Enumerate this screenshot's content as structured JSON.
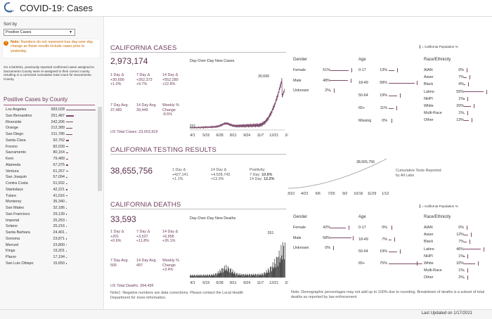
{
  "header": {
    "title": "COVID-19: Cases",
    "logo": "CA GOV"
  },
  "sidebar": {
    "sort_label": "Sort by",
    "sort_value": "Positive Cases",
    "note_bold": "Note:",
    "note_text": "Numbers do not represent true day-over-day change as these results include cases prior to yesterday.",
    "info": "On 1/15/2021, previously reported confirmed cases assigned to Sacramento County were re-assigned to their correct county resulting in a corrected cumulative total count for Sacramento County.",
    "county_title": "Positive Cases by County",
    "counties": [
      {
        "name": "Los Angeles",
        "value": "993,028",
        "v": 993028
      },
      {
        "name": "San Bernardino",
        "value": "251,487",
        "v": 251487
      },
      {
        "name": "Riverside",
        "value": "242,206",
        "v": 242206
      },
      {
        "name": "Orange",
        "value": "212,389",
        "v": 212389
      },
      {
        "name": "San Diego",
        "value": "211,785",
        "v": 211785
      },
      {
        "name": "Santa Clara",
        "value": "92,752",
        "v": 92752
      },
      {
        "name": "Fresno",
        "value": "82,039",
        "v": 82039
      },
      {
        "name": "Sacramento",
        "value": "80,154",
        "v": 80154
      },
      {
        "name": "Kern",
        "value": "79,489",
        "v": 79489
      },
      {
        "name": "Alameda",
        "value": "67,375",
        "v": 67375
      },
      {
        "name": "Ventura",
        "value": "61,257",
        "v": 61257
      },
      {
        "name": "San Joaquin",
        "value": "57,094",
        "v": 57094
      },
      {
        "name": "Contra Costa",
        "value": "51,932",
        "v": 51932
      },
      {
        "name": "Stanislaus",
        "value": "42,221",
        "v": 42221
      },
      {
        "name": "Tulare",
        "value": "41,016",
        "v": 41016
      },
      {
        "name": "Monterey",
        "value": "35,340",
        "v": 35340
      },
      {
        "name": "San Mateo",
        "value": "32,186",
        "v": 32186
      },
      {
        "name": "San Francisco",
        "value": "29,139",
        "v": 29139
      },
      {
        "name": "Imperial",
        "value": "25,253",
        "v": 25253
      },
      {
        "name": "Solano",
        "value": "25,216",
        "v": 25216
      },
      {
        "name": "Santa Barbara",
        "value": "24,401",
        "v": 24401
      },
      {
        "name": "Sonoma",
        "value": "23,871",
        "v": 23871
      },
      {
        "name": "Merced",
        "value": "23,800",
        "v": 23800
      },
      {
        "name": "Kings",
        "value": "19,201",
        "v": 19201
      },
      {
        "name": "Placer",
        "value": "17,194",
        "v": 17194
      },
      {
        "name": "San Luis Obispo",
        "value": "15,650",
        "v": 15650
      }
    ]
  },
  "legend": "= California Population %",
  "cases": {
    "title": "CALIFORNIA CASES",
    "total": "2,973,174",
    "d1_label": "1 Day Δ",
    "d1_val": "+30,699",
    "d1_pct": "+1.0%",
    "d7_label": "7 Day Δ",
    "d7_val": "+262,373",
    "d7_pct": "+9.7%",
    "d14_label": "14 Day Δ",
    "d14_val": "+552,280",
    "d14_pct": "+22.8%",
    "avg7_label": "7 Day Avg.",
    "avg7_val": "37,482",
    "avg14_label": "14 Day Avg.",
    "avg14_val": "39,449",
    "weekly_label": "Weekly % Change",
    "weekly_val": "-9.5%",
    "total_tests": "US Total Cases: 23,653,919",
    "chart_title": "Day-Over-Day New Cases",
    "peak_label": "30,699",
    "start_label": "331",
    "xticks": [
      "4/1",
      "5/15",
      "6/28",
      "8/11",
      "9/24",
      "11/7",
      "12/21",
      "2/3"
    ]
  },
  "testing": {
    "title": "CALIFORNIA TESTING RESULTS",
    "total": "38,655,756",
    "d1_label": "1 Day Δ",
    "d1_val": "+427,141",
    "d1_pct": "+1.1%",
    "d14_label": "14 Day Δ",
    "d14_val": "+4,528,743",
    "d14_pct": "+13.3%",
    "pos_label": "Positivity:",
    "pos7_label": "7 Day:",
    "pos7_val": "10.6%",
    "pos14_label": "14 Day:",
    "pos14_val": "12.2%",
    "chart_peak": "38,655,756",
    "chart_label": "Cumulative Tests Reported by All Labs",
    "xticks": [
      "3/10",
      "4/23",
      "6/6",
      "7/20",
      "9/2",
      "10/16",
      "11/29",
      "1/12"
    ]
  },
  "deaths": {
    "title": "CALIFORNIA DEATHS",
    "total": "33,593",
    "d1_label": "1 Day Δ",
    "d1_val": "+201",
    "d1_pct": "+0.6%",
    "d7_label": "7 Day Δ",
    "d7_val": "+3,537",
    "d7_pct": "+11.8%",
    "d14_label": "14 Day Δ",
    "d14_val": "+6,958",
    "d14_pct": "+26.1%",
    "avg7_label": "7 Day Avg.",
    "avg7_val": "505",
    "avg14_label": "14 Day Avg.",
    "avg14_val": "497",
    "weekly_label": "Weekly % Change",
    "weekly_val": "+3.4%",
    "total_deaths": "US Total Deaths: 394,495",
    "chart_title": "Day-Over-Day New Deaths",
    "peak_label": "201",
    "start_label": "",
    "note1": "Note1: Negative numbers are data corrections. Please contact the Local Health Department for more information.",
    "xticks": [
      "4/1",
      "5/15",
      "6/28",
      "8/11",
      "9/24",
      "11/7",
      "12/21",
      "2/3"
    ]
  },
  "demo_cases": {
    "gender_title": "Gender",
    "gender": [
      {
        "label": "Female",
        "pct": "51%",
        "v": 51
      },
      {
        "label": "Male",
        "pct": "48%",
        "v": 48
      },
      {
        "label": "Unknown",
        "pct": "2%",
        "v": 2
      }
    ],
    "age_title": "Age",
    "age": [
      {
        "label": "0-17",
        "pct": "13%",
        "v": 13
      },
      {
        "label": "18-49",
        "pct": "58%",
        "v": 58
      },
      {
        "label": "50-64",
        "pct": "19%",
        "v": 19
      },
      {
        "label": "65+",
        "pct": "11%",
        "v": 11
      },
      {
        "label": "Missing",
        "pct": "0%",
        "v": 0
      }
    ],
    "race_title": "Race/Ethnicity",
    "race": [
      {
        "label": "AIAN",
        "pct": "0%",
        "v": 0
      },
      {
        "label": "Asian",
        "pct": "7%",
        "v": 7
      },
      {
        "label": "Black",
        "pct": "4%",
        "v": 4
      },
      {
        "label": "Latino",
        "pct": "55%",
        "v": 55
      },
      {
        "label": "NHPI",
        "pct": "1%",
        "v": 1
      },
      {
        "label": "White",
        "pct": "20%",
        "v": 20
      },
      {
        "label": "Multi-Race",
        "pct": "1%",
        "v": 1
      },
      {
        "label": "Other",
        "pct": "13%",
        "v": 13
      }
    ]
  },
  "demo_deaths": {
    "gender_title": "Gender",
    "gender": [
      {
        "label": "Female",
        "pct": "42%",
        "v": 42
      },
      {
        "label": "Male",
        "pct": "58%",
        "v": 58
      },
      {
        "label": "Unknown",
        "pct": "0%",
        "v": 0
      }
    ],
    "age_title": "Age",
    "age": [
      {
        "label": "0-17",
        "pct": "0%",
        "v": 0
      },
      {
        "label": "18-49",
        "pct": "7%",
        "v": 7
      },
      {
        "label": "50-64",
        "pct": "19%",
        "v": 19
      },
      {
        "label": "65+",
        "pct": "75%",
        "v": 75
      }
    ],
    "race_title": "Race/Ethnicity",
    "race": [
      {
        "label": "AIAN",
        "pct": "0%",
        "v": 0
      },
      {
        "label": "Asian",
        "pct": "12%",
        "v": 12
      },
      {
        "label": "Black",
        "pct": "7%",
        "v": 7
      },
      {
        "label": "Latino",
        "pct": "46%",
        "v": 46
      },
      {
        "label": "NHPI",
        "pct": "1%",
        "v": 1
      },
      {
        "label": "White",
        "pct": "32%",
        "v": 32
      },
      {
        "label": "Multi-Race",
        "pct": "1%",
        "v": 1
      },
      {
        "label": "Other",
        "pct": "2%",
        "v": 2
      }
    ],
    "note": "Note: Demographic percentages may not add up to 100% due to rounding. Breakdown of deaths is a subset of total deaths as reported by law enforcement"
  },
  "footer": {
    "updated": "Last Updated on 1/17/2021"
  },
  "colors": {
    "accent": "#6b3b5b",
    "bar": "#7d4b6a"
  }
}
